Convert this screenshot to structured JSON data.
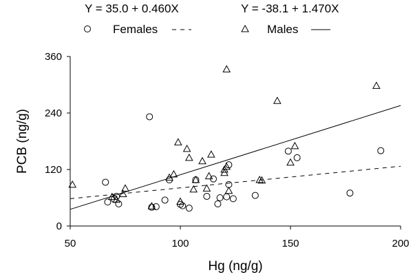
{
  "chart_data": {
    "type": "scatter",
    "equations": [
      "Y = 35.0 + 0.460X",
      "Y = -38.1 + 1.470X"
    ],
    "xlabel": "Hg (ng/g)",
    "ylabel": "PCB (ng/g)",
    "xlim": [
      50,
      200
    ],
    "ylim": [
      0,
      360
    ],
    "xticks": [
      "50",
      "100",
      "150",
      "200"
    ],
    "yticks": [
      "0",
      "120",
      "240",
      "360"
    ],
    "grid": false,
    "legend_position": "top",
    "series": [
      {
        "name": "Females",
        "marker": "circle",
        "line_style": "dashed",
        "fit": {
          "intercept": 35.0,
          "slope": 0.46
        },
        "points": [
          [
            66,
            93
          ],
          [
            67,
            51
          ],
          [
            70,
            57
          ],
          [
            71,
            63
          ],
          [
            72,
            47
          ],
          [
            86,
            232
          ],
          [
            87,
            40
          ],
          [
            89,
            41
          ],
          [
            93,
            55
          ],
          [
            95,
            98
          ],
          [
            100,
            46
          ],
          [
            101,
            43
          ],
          [
            104,
            38
          ],
          [
            107,
            98
          ],
          [
            112,
            63
          ],
          [
            115,
            100
          ],
          [
            117,
            47
          ],
          [
            118,
            60
          ],
          [
            121,
            62
          ],
          [
            122,
            88
          ],
          [
            122,
            130
          ],
          [
            124,
            58
          ],
          [
            134,
            65
          ],
          [
            149,
            159
          ],
          [
            153,
            145
          ],
          [
            177,
            70
          ],
          [
            191,
            160
          ]
        ]
      },
      {
        "name": "Males",
        "marker": "triangle",
        "line_style": "solid",
        "fit": {
          "intercept": -38.1,
          "slope": 1.47
        },
        "points": [
          [
            51,
            88
          ],
          [
            69,
            62
          ],
          [
            71,
            56
          ],
          [
            74,
            68
          ],
          [
            75,
            80
          ],
          [
            87,
            42
          ],
          [
            95,
            103
          ],
          [
            97,
            110
          ],
          [
            99,
            178
          ],
          [
            100,
            52
          ],
          [
            103,
            164
          ],
          [
            104,
            145
          ],
          [
            106,
            78
          ],
          [
            107,
            98
          ],
          [
            110,
            138
          ],
          [
            112,
            80
          ],
          [
            113,
            106
          ],
          [
            114,
            152
          ],
          [
            120,
            120
          ],
          [
            120,
            113
          ],
          [
            121,
            333
          ],
          [
            121,
            126
          ],
          [
            122,
            75
          ],
          [
            136,
            98
          ],
          [
            137,
            97
          ],
          [
            144,
            266
          ],
          [
            150,
            135
          ],
          [
            152,
            170
          ],
          [
            189,
            298
          ]
        ]
      }
    ]
  }
}
